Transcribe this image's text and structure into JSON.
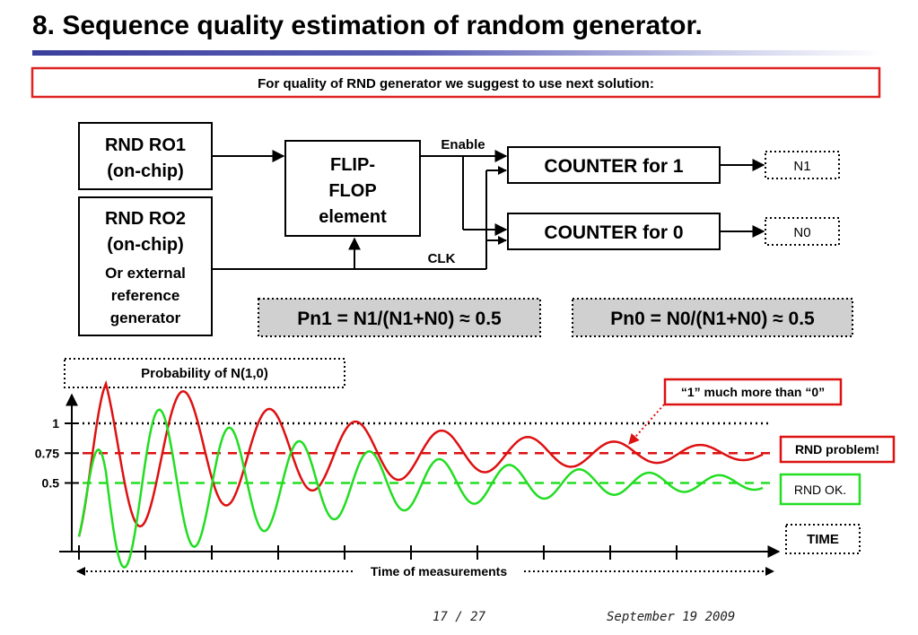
{
  "slide": {
    "title": "8. Sequence quality estimation of random generator.",
    "banner": "For quality of RND generator we suggest to use next solution:",
    "page": "17  /  27",
    "date": "September 19 2009"
  },
  "diagram": {
    "ro1_line1": "RND RO1",
    "ro1_line2": "(on-chip)",
    "ro2_line1": "RND RO2",
    "ro2_line2": "(on-chip)",
    "ro2_line3": "Or external",
    "ro2_line4": "reference",
    "ro2_line5": "generator",
    "ff_line1": "FLIP-",
    "ff_line2": "FLOP",
    "ff_line3": "element",
    "enable_label": "Enable",
    "clk_label": "CLK",
    "counter1": "COUNTER for 1",
    "counter0": "COUNTER for 0",
    "n1": "N1",
    "n0": "N0",
    "formula1": "Pn1 = N1/(N1+N0) ≈ 0.5",
    "formula0": "Pn0 = N0/(N1+N0) ≈ 0.5"
  },
  "chart_data": {
    "type": "line",
    "title": "Probability of N(1,0)",
    "xlabel": "Time of measurements",
    "x_axis_label": "TIME",
    "y_ticks": [
      {
        "value": 1,
        "label": "1"
      },
      {
        "value": 0.75,
        "label": "0.75"
      },
      {
        "value": 0.5,
        "label": "0.5"
      }
    ],
    "reference_lines": [
      {
        "value": 1,
        "style": "dotted",
        "color": "#000000"
      },
      {
        "value": 0.75,
        "style": "dashed",
        "color": "#dd1111"
      },
      {
        "value": 0.5,
        "style": "dashed",
        "color": "#22dd22"
      }
    ],
    "series": [
      {
        "name": "RND problem!",
        "color": "#dd1111",
        "converges_to": 0.75
      },
      {
        "name": "RND OK.",
        "color": "#22dd22",
        "converges_to": 0.5
      }
    ],
    "annotation": "“1” much more than “0”"
  }
}
